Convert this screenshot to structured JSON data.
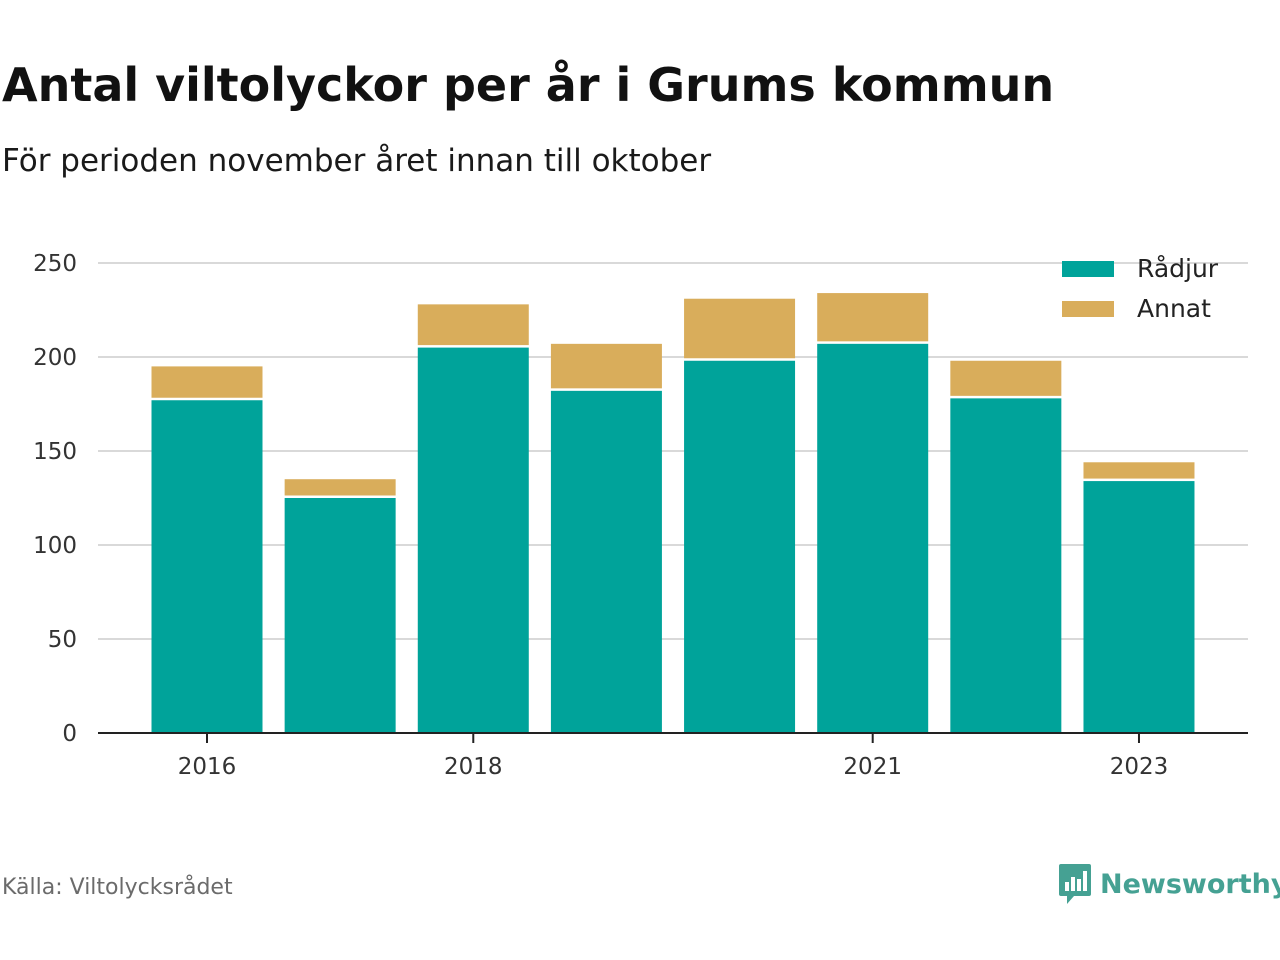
{
  "header": {
    "title": "Antal viltolyckor per år i Grums kommun",
    "subtitle": "För perioden november året innan till oktober"
  },
  "footer": {
    "source": "Källa: Viltolycksrådet",
    "brand": "Newsworthy",
    "brand_icon": "bar-chart-speech-bubble-icon"
  },
  "colors": {
    "radjur": "#00a39a",
    "annat": "#d9ad5b",
    "grid": "#d9d9d9",
    "axis": "#222222",
    "brand": "#45a193"
  },
  "chart_data": {
    "type": "bar",
    "stacked": true,
    "categories": [
      "2016",
      "2017",
      "2018",
      "2019",
      "2020",
      "2021",
      "2022",
      "2023"
    ],
    "x_tick_labels": [
      "2016",
      "",
      "2018",
      "",
      "",
      "2021",
      "",
      "2023"
    ],
    "series": [
      {
        "name": "Rådjur",
        "color": "#00a39a",
        "values": [
          177,
          125,
          205,
          182,
          198,
          207,
          178,
          134
        ]
      },
      {
        "name": "Annat",
        "color": "#d9ad5b",
        "values": [
          18,
          10,
          23,
          25,
          33,
          27,
          20,
          10
        ]
      }
    ],
    "ylim": [
      0,
      250
    ],
    "yticks": [
      0,
      50,
      100,
      150,
      200,
      250
    ],
    "grid": true,
    "legend": "top-right",
    "xlabel": "",
    "ylabel": ""
  }
}
